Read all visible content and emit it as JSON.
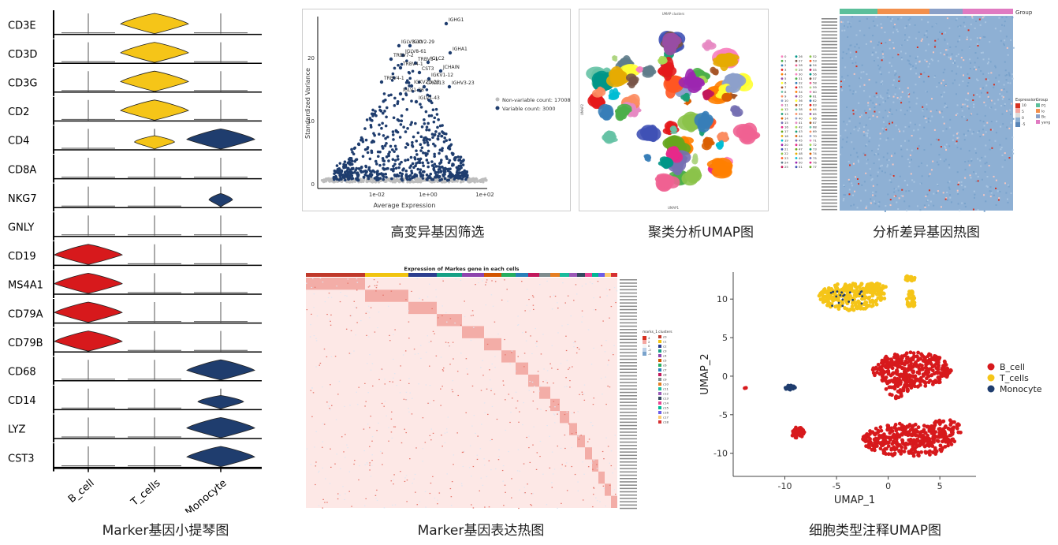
{
  "captions": {
    "violin": "Marker基因小提琴图",
    "hvg": "高变异基因筛选",
    "umap_cluster": "聚类分析UMAP图",
    "deg_heatmap": "分析差异基因热图",
    "marker_heatmap": "Marker基因表达热图",
    "umap_celltype": "细胞类型注释UMAP图"
  },
  "chart_data": [
    {
      "type": "violin",
      "genes": [
        "CD3E",
        "CD3D",
        "CD3G",
        "CD2",
        "CD4",
        "CD8A",
        "NKG7",
        "GNLY",
        "CD19",
        "MS4A1",
        "CD79A",
        "CD79B",
        "CD68",
        "CD14",
        "LYZ",
        "CST3"
      ],
      "groups": [
        "B_cell",
        "T_cells",
        "Monocyte"
      ],
      "colors": {
        "B_cell": "#d7191c",
        "T_cells": "#f5c518",
        "Monocyte": "#1f3d6e"
      },
      "expressed": [
        [
          0,
          1,
          0
        ],
        [
          0,
          1,
          0
        ],
        [
          0,
          1,
          0
        ],
        [
          0,
          1,
          0
        ],
        [
          0,
          0.5,
          1
        ],
        [
          0,
          0,
          0
        ],
        [
          0,
          0,
          0.2
        ],
        [
          0,
          0,
          0
        ],
        [
          1,
          0,
          0
        ],
        [
          1,
          0,
          0
        ],
        [
          1,
          0,
          0
        ],
        [
          1,
          0,
          0
        ],
        [
          0,
          0,
          1
        ],
        [
          0,
          0,
          0.6
        ],
        [
          0,
          0,
          1
        ],
        [
          0,
          0,
          1
        ]
      ]
    },
    {
      "type": "scatter",
      "xlabel": "Average Expression",
      "ylabel": "Standardized Variance",
      "x_ticks": [
        "1e-02",
        "1e+00",
        "1e+02"
      ],
      "y_ticks": [
        "0",
        "10",
        "20"
      ],
      "ylim": [
        0,
        26
      ],
      "legend": [
        "Non-variable count: 17008",
        "Variable count: 3000"
      ],
      "legend_colors": [
        "#bdbdbd",
        "#1f3d6e"
      ],
      "labeled_genes": [
        "IGHG1",
        "IGLV3-10",
        "IGKV2-29",
        "IGLV8-61",
        "IGHA1",
        "TRBV7-2",
        "TRBV5-1",
        "IGLC2",
        "TRBV4-1",
        "CST3",
        "JCHAIN",
        "IGKV1-12",
        "TRBV4-1",
        "IGKV2D-28",
        "CXCL13",
        "IGHV3-23",
        "IGLV1-36",
        "IGLV1-43"
      ]
    },
    {
      "type": "scatter",
      "title": "UMAP clusters",
      "xlabel": "UMAP1",
      "ylabel": "UMAP2",
      "clusters": [
        "0",
        "1",
        "2",
        "3",
        "4",
        "5",
        "6",
        "7",
        "8",
        "9",
        "10",
        "11",
        "12",
        "13",
        "14",
        "15",
        "16",
        "17",
        "18",
        "19",
        "20",
        "21",
        "22",
        "23",
        "24",
        "25",
        "26",
        "27",
        "28",
        "29",
        "30",
        "31",
        "32",
        "33",
        "34",
        "35",
        "36",
        "37",
        "38",
        "39",
        "40",
        "41",
        "42",
        "43",
        "44",
        "45",
        "46",
        "47",
        "48",
        "49",
        "50",
        "51",
        "52",
        "53",
        "54",
        "55",
        "56",
        "57",
        "58",
        "59",
        "60",
        "61",
        "62",
        "63",
        "64",
        "65",
        "66",
        "67",
        "68",
        "69",
        "70",
        "71",
        "72",
        "73",
        "74",
        "75",
        "76",
        "77"
      ]
    },
    {
      "type": "heatmap",
      "legend_expression_title": "Expression",
      "legend_expression_ticks": [
        "10",
        "5",
        "0",
        "-5"
      ],
      "legend_group_title": "Group",
      "groups": [
        "P1",
        "lo",
        "Bc",
        "yang"
      ],
      "group_colors": [
        "#5bbf9a",
        "#f28f4c",
        "#8aa0c8",
        "#e07ac1"
      ]
    },
    {
      "type": "heatmap",
      "title": "Expression of Markes gene in each cells",
      "legend_expression_title": "marks_1",
      "legend_expression_ticks": [
        "4",
        "2",
        "0",
        "-2",
        "-4"
      ],
      "legend_cluster_title": "clusters",
      "clusters": [
        "c0",
        "c1",
        "c2",
        "c3",
        "c4",
        "c5",
        "c6",
        "c7",
        "c8",
        "c9",
        "c10",
        "c11",
        "c12",
        "c13",
        "c14",
        "c15",
        "c16",
        "c17",
        "c18"
      ]
    },
    {
      "type": "scatter",
      "xlabel": "UMAP_1",
      "ylabel": "UMAP_2",
      "x_ticks": [
        -10,
        -5,
        0,
        5
      ],
      "y_ticks": [
        10,
        5,
        0,
        -5,
        -10
      ],
      "xlim": [
        -15,
        8.5
      ],
      "ylim": [
        -13,
        13.5
      ],
      "series": [
        {
          "name": "B_cell",
          "color": "#d7191c"
        },
        {
          "name": "T_cells",
          "color": "#f5c518"
        },
        {
          "name": "Monocyte",
          "color": "#1f3d6e"
        }
      ]
    }
  ]
}
